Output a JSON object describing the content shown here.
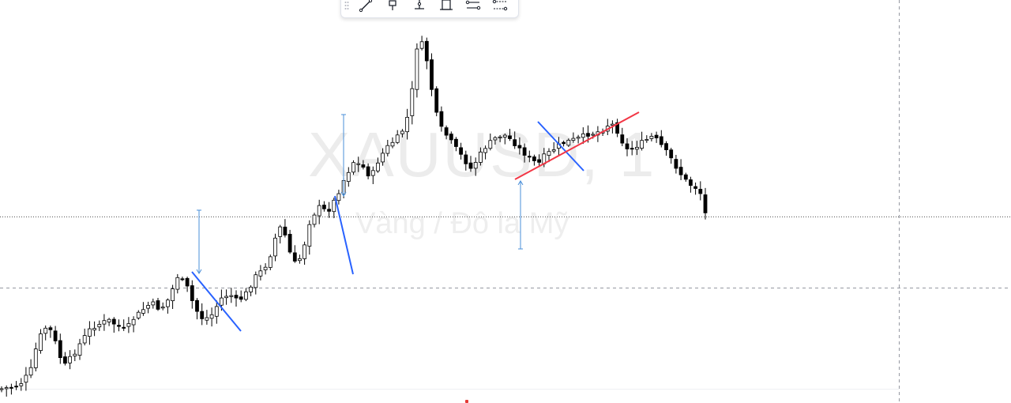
{
  "watermark": {
    "symbol": "XAUUSD, 1",
    "description": "Vàng / Đô la Mỹ"
  },
  "colors": {
    "candle_up": "#ffffff",
    "candle_down": "#000000",
    "candle_outline": "#000000",
    "trendline_blue": "#2962ff",
    "trendline_red": "#f23645",
    "measure_blue": "#4a8fd9",
    "crosshair": "#9598a1",
    "accent_red": "#e53935"
  },
  "toolbar": {
    "items": [
      {
        "icon": "drag-handle-icon"
      },
      {
        "icon": "trend-line-icon"
      },
      {
        "icon": "horizontal-ray-icon"
      },
      {
        "icon": "vertical-line-icon"
      },
      {
        "icon": "rectangle-icon"
      },
      {
        "icon": "date-range-icon"
      },
      {
        "icon": "price-range-icon"
      }
    ]
  },
  "chart_data": {
    "type": "candlestick",
    "symbol": "XAUUSD",
    "timeframe": "1",
    "bar_count": 145,
    "price_axis_visible": false,
    "time_axis_visible": false,
    "grid": false,
    "drawings": [
      {
        "type": "trend-line",
        "color": "blue",
        "direction": "down",
        "count": 3
      },
      {
        "type": "trend-line",
        "color": "red",
        "direction": "up",
        "count": 1
      },
      {
        "type": "measure-arrow",
        "direction": "down",
        "count": 2
      },
      {
        "type": "measure-arrow",
        "direction": "up",
        "count": 1
      },
      {
        "type": "crosshair",
        "style": "dashed-horizontal-and-vertical"
      },
      {
        "type": "horizontal-line",
        "style": "dotted"
      }
    ],
    "trend": "rally to peak, consolidation, then decline"
  }
}
